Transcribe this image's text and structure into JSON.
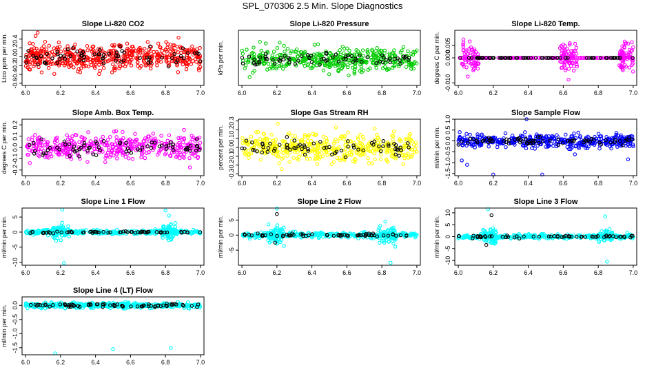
{
  "figure": {
    "title": "SPL_070306  2.5 Min. Slope Diagnostics"
  },
  "chart_data": [
    {
      "type": "scatter",
      "title": "Slope Li-820 CO2",
      "ylabel": "Ltco ppm per min.",
      "xlabel": "",
      "xlim": [
        5.98,
        7.02
      ],
      "ylim": [
        -0.65,
        0.6
      ],
      "xticks": [
        "6.0",
        "6.2",
        "6.4",
        "6.6",
        "6.8",
        "7.0"
      ],
      "yticks": [
        "-0.6",
        "-0.4",
        "-0.2",
        "0.0",
        "0.2",
        "0.4"
      ],
      "ytick_values": [
        -0.6,
        -0.4,
        -0.2,
        0.0,
        0.2,
        0.4
      ],
      "series": [
        {
          "color": "#ff0000",
          "kind": "noise",
          "spread": 0.28,
          "n": 520,
          "seed": 11
        },
        {
          "color": "#000000",
          "kind": "noise",
          "spread": 0.22,
          "n": 70,
          "seed": 12
        }
      ]
    },
    {
      "type": "scatter",
      "title": "Slope Li-820 Pressure",
      "ylabel": "kPa per min.",
      "xlabel": "",
      "xlim": [
        5.98,
        7.02
      ],
      "ylim": [
        -0.2,
        0.22
      ],
      "xticks": [
        "6.0",
        "6.2",
        "6.4",
        "6.6",
        "6.8",
        "7.0"
      ],
      "yticks": [],
      "ytick_values": [],
      "series": [
        {
          "color": "#00cc00",
          "kind": "noise",
          "spread": 0.08,
          "n": 420,
          "seed": 21
        },
        {
          "color": "#000000",
          "kind": "noise",
          "spread": 0.04,
          "n": 70,
          "seed": 22
        }
      ]
    },
    {
      "type": "scatter",
      "title": "Slope Li-820 Temp.",
      "ylabel": "degrees C per min.",
      "xlabel": "",
      "xlim": [
        5.98,
        7.02
      ],
      "ylim": [
        -0.011,
        0.011
      ],
      "xticks": [
        "6.0",
        "6.2",
        "6.4",
        "6.6",
        "6.8",
        "7.0"
      ],
      "yticks": [
        "-0.010",
        "0.000",
        "0.005"
      ],
      "ytick_values": [
        -0.01,
        0.0,
        0.005
      ],
      "series": [
        {
          "color": "#ff00ff",
          "kind": "bursts",
          "spread": 0.005,
          "n": 200,
          "seed": 31,
          "bursts": [
            [
              6.02,
              6.12
            ],
            [
              6.58,
              6.68
            ],
            [
              6.92,
              7.0
            ]
          ]
        },
        {
          "color": "#ff00ff",
          "kind": "flat",
          "value": 0.0,
          "n": 160,
          "seed": 32
        },
        {
          "color": "#000000",
          "kind": "flat",
          "value": 0.0,
          "n": 70,
          "seed": 33
        }
      ]
    },
    {
      "type": "scatter",
      "title": "Slope Amb. Box Temp.",
      "ylabel": "degrees C per min.",
      "xlabel": "",
      "xlim": [
        5.98,
        7.02
      ],
      "ylim": [
        -0.25,
        0.25
      ],
      "xticks": [
        "6.0",
        "6.2",
        "6.4",
        "6.6",
        "6.8",
        "7.0"
      ],
      "yticks": [
        "-0.2",
        "-0.1",
        "0.0",
        "0.1",
        "0.2"
      ],
      "ytick_values": [
        -0.2,
        -0.1,
        0.0,
        0.1,
        0.2
      ],
      "series": [
        {
          "color": "#ff00ff",
          "kind": "noise",
          "spread": 0.1,
          "n": 420,
          "seed": 41
        },
        {
          "color": "#000000",
          "kind": "noise",
          "spread": 0.07,
          "n": 70,
          "seed": 42
        }
      ]
    },
    {
      "type": "scatter",
      "title": "Slope Gas Stream RH",
      "ylabel": "percent per min.",
      "xlabel": "",
      "xlim": [
        5.98,
        7.02
      ],
      "ylim": [
        -0.32,
        0.32
      ],
      "xticks": [
        "6.0",
        "6.2",
        "6.4",
        "6.6",
        "6.8",
        "7.0"
      ],
      "yticks": [
        "-0.3",
        "-0.2",
        "-0.1",
        "0.0",
        "0.1",
        "0.2",
        "0.3"
      ],
      "ytick_values": [
        -0.3,
        -0.2,
        -0.1,
        0.0,
        0.1,
        0.2,
        0.3
      ],
      "series": [
        {
          "color": "#ffff00",
          "kind": "noise",
          "spread": 0.14,
          "n": 460,
          "seed": 51
        },
        {
          "color": "#000000",
          "kind": "noise",
          "spread": 0.08,
          "n": 70,
          "seed": 52
        }
      ]
    },
    {
      "type": "scatter",
      "title": "Slope Sample Flow",
      "ylabel": "ml/min per min.",
      "xlabel": "",
      "xlim": [
        5.98,
        7.02
      ],
      "ylim": [
        -1.6,
        1.0
      ],
      "xticks": [
        "6.0",
        "6.2",
        "6.4",
        "6.6",
        "6.8",
        "7.0"
      ],
      "yticks": [
        "-1.5",
        "-1.0",
        "-0.5",
        "0.0",
        "0.5",
        "1.0"
      ],
      "ytick_values": [
        -1.5,
        -1.0,
        -0.5,
        0.0,
        0.5,
        1.0
      ],
      "series": [
        {
          "color": "#0000ff",
          "kind": "noise",
          "spread": 0.28,
          "n": 440,
          "seed": 61
        },
        {
          "color": "#000000",
          "kind": "noise",
          "spread": 0.15,
          "n": 70,
          "seed": 62
        },
        {
          "color": "#0000ff",
          "kind": "points",
          "points": [
            [
              6.39,
              1.0
            ],
            [
              6.2,
              -1.55
            ],
            [
              6.48,
              -1.55
            ],
            [
              6.02,
              -0.9
            ],
            [
              6.05,
              -1.1
            ],
            [
              6.97,
              -0.85
            ]
          ]
        }
      ]
    },
    {
      "type": "scatter",
      "title": "Slope Line 1 Flow",
      "ylabel": "ml/min per min.",
      "xlabel": "",
      "xlim": [
        5.98,
        7.02
      ],
      "ylim": [
        -11,
        8
      ],
      "xticks": [
        "6.0",
        "6.2",
        "6.4",
        "6.6",
        "6.8",
        "7.0"
      ],
      "yticks": [
        "-10",
        "-5",
        "0",
        "5"
      ],
      "ytick_values": [
        -10,
        -5,
        0,
        5
      ],
      "series": [
        {
          "color": "#00ffff",
          "kind": "bursts",
          "spread": 2.2,
          "n": 140,
          "seed": 71,
          "bursts": [
            [
              6.15,
              6.25
            ],
            [
              6.78,
              6.86
            ]
          ]
        },
        {
          "color": "#00ffff",
          "kind": "noise",
          "spread": 0.6,
          "n": 320,
          "seed": 72
        },
        {
          "color": "#000000",
          "kind": "noise",
          "spread": 0.25,
          "n": 60,
          "seed": 73
        },
        {
          "color": "#00ffff",
          "kind": "points",
          "points": [
            [
              6.21,
              7.5
            ],
            [
              6.22,
              -10.3
            ],
            [
              6.8,
              7.2
            ],
            [
              6.82,
              5.5
            ]
          ]
        }
      ]
    },
    {
      "type": "scatter",
      "title": "Slope Line 2 Flow",
      "ylabel": "ml/min per min.",
      "xlabel": "",
      "xlim": [
        5.98,
        7.02
      ],
      "ylim": [
        -10,
        9
      ],
      "xticks": [
        "6.0",
        "6.2",
        "6.4",
        "6.6",
        "6.8",
        "7.0"
      ],
      "yticks": [
        "-5",
        "0",
        "5"
      ],
      "ytick_values": [
        -5,
        0,
        5
      ],
      "series": [
        {
          "color": "#00ffff",
          "kind": "bursts",
          "spread": 2.5,
          "n": 140,
          "seed": 81,
          "bursts": [
            [
              6.15,
              6.24
            ],
            [
              6.78,
              6.88
            ]
          ]
        },
        {
          "color": "#00ffff",
          "kind": "noise",
          "spread": 0.8,
          "n": 320,
          "seed": 82
        },
        {
          "color": "#000000",
          "kind": "noise",
          "spread": 0.4,
          "n": 60,
          "seed": 83
        },
        {
          "color": "#00ffff",
          "kind": "points",
          "points": [
            [
              6.2,
              8.8
            ],
            [
              6.85,
              -9.2
            ],
            [
              6.82,
              4.5
            ]
          ]
        },
        {
          "color": "#000000",
          "kind": "points",
          "points": [
            [
              6.2,
              7.0
            ],
            [
              6.19,
              -2.5
            ]
          ]
        }
      ]
    },
    {
      "type": "scatter",
      "title": "Slope Line 3 Flow",
      "ylabel": "ml/min per min.",
      "xlabel": "",
      "xlim": [
        5.98,
        7.02
      ],
      "ylim": [
        -12,
        12
      ],
      "xticks": [
        "6.0",
        "6.2",
        "6.4",
        "6.6",
        "6.8",
        "7.0"
      ],
      "yticks": [
        "-10",
        "-5",
        "0",
        "5",
        "10"
      ],
      "ytick_values": [
        -10,
        -5,
        0,
        5,
        10
      ],
      "series": [
        {
          "color": "#00ffff",
          "kind": "bursts",
          "spread": 2.5,
          "n": 120,
          "seed": 91,
          "bursts": [
            [
              6.14,
              6.22
            ],
            [
              6.8,
              6.88
            ]
          ]
        },
        {
          "color": "#00ffff",
          "kind": "noise",
          "spread": 0.8,
          "n": 320,
          "seed": 92
        },
        {
          "color": "#000000",
          "kind": "noise",
          "spread": 0.5,
          "n": 60,
          "seed": 93
        },
        {
          "color": "#00ffff",
          "kind": "points",
          "points": [
            [
              6.17,
              11.5
            ],
            [
              6.85,
              -10.5
            ],
            [
              6.84,
              8.5
            ]
          ]
        },
        {
          "color": "#000000",
          "kind": "points",
          "points": [
            [
              6.19,
              9.0
            ],
            [
              6.16,
              -3.5
            ]
          ]
        }
      ]
    },
    {
      "type": "scatter",
      "title": "Slope Line 4 (LT) Flow",
      "ylabel": "ml/min per min.",
      "xlabel": "",
      "xlim": [
        5.98,
        7.02
      ],
      "ylim": [
        -1.75,
        0.3
      ],
      "xticks": [
        "6.0",
        "6.2",
        "6.4",
        "6.6",
        "6.8",
        "7.0"
      ],
      "yticks": [
        "-1.5",
        "-1.0",
        "-0.5",
        "0.0"
      ],
      "ytick_values": [
        -1.5,
        -1.0,
        -0.5,
        0.0
      ],
      "series": [
        {
          "color": "#00ffff",
          "kind": "noise",
          "spread": 0.08,
          "n": 460,
          "seed": 101
        },
        {
          "color": "#000000",
          "kind": "noise",
          "spread": 0.05,
          "n": 70,
          "seed": 102
        },
        {
          "color": "#00ffff",
          "kind": "points",
          "points": [
            [
              6.17,
              -1.7
            ],
            [
              6.5,
              -1.55
            ],
            [
              6.83,
              -1.5
            ]
          ]
        }
      ]
    }
  ]
}
